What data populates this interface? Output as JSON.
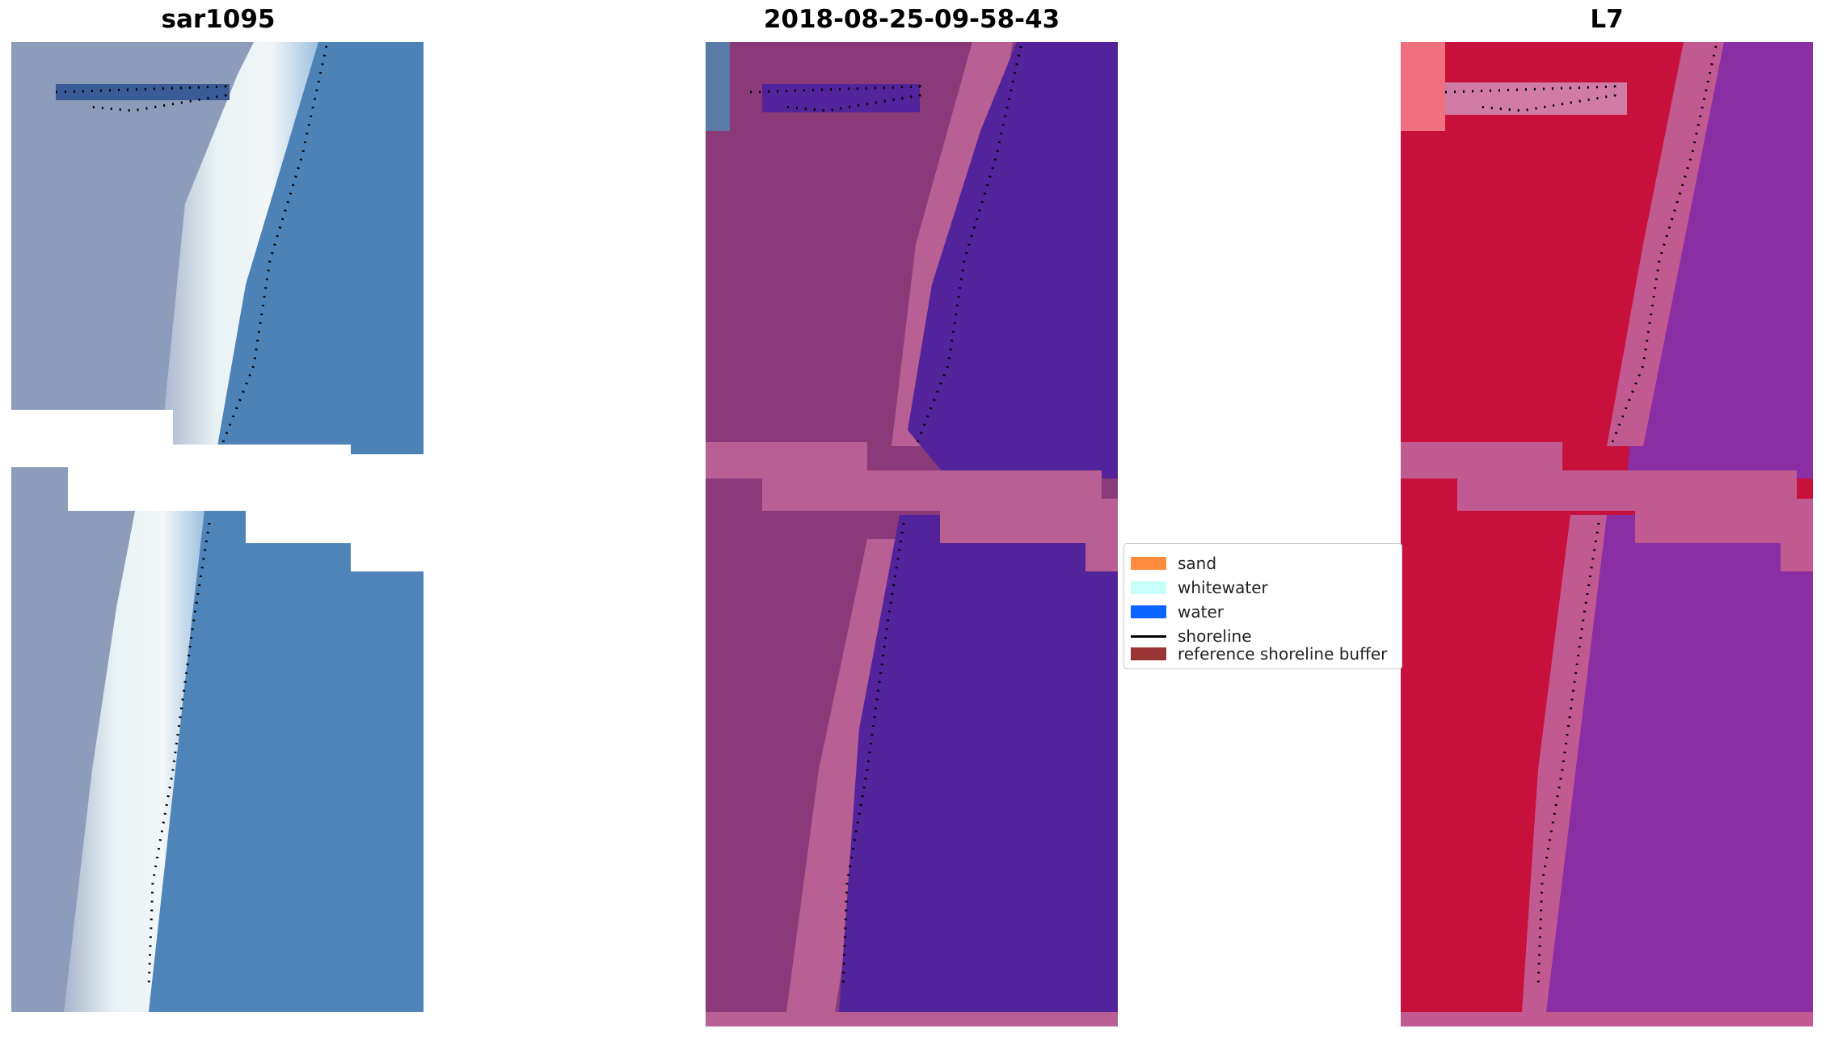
{
  "panels": [
    {
      "id": "rgb",
      "title": "sar1095"
    },
    {
      "id": "classified",
      "title": "2018-08-25-09-58-43"
    },
    {
      "id": "false-color",
      "title": "L7"
    }
  ],
  "legend": {
    "items": [
      {
        "label": "sand",
        "color": "#ff8c3c",
        "kind": "patch"
      },
      {
        "label": "whitewater",
        "color": "#c8fffb",
        "kind": "patch"
      },
      {
        "label": "water",
        "color": "#0a64ff",
        "kind": "patch"
      },
      {
        "label": "shoreline",
        "color": "#000000",
        "kind": "line"
      },
      {
        "label": "reference shoreline buffer",
        "color": "#9a3535",
        "kind": "patch"
      }
    ]
  },
  "colors": {
    "rgb_land": "#8c9cba",
    "rgb_water": "#4d82b6",
    "rgb_whitewater": "#e6f0f2",
    "class_land": "#8a3a78",
    "class_sand_mix": "#b86094",
    "class_water": "#52239a",
    "fc_land": "#c8103c",
    "fc_mid": "#c25a92",
    "fc_water": "#8a2ea4"
  }
}
